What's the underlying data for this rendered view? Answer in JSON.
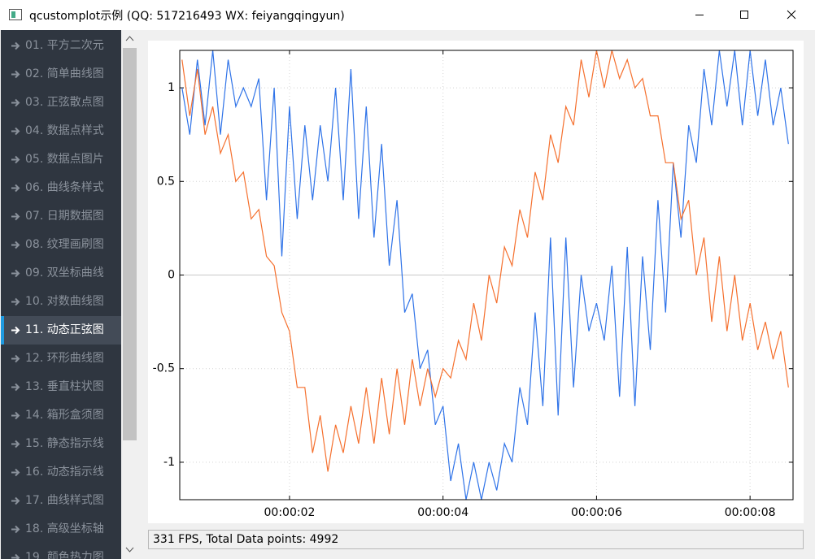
{
  "window": {
    "title": "qcustomplot示例 (QQ: 517216493 WX: feiyangqingyun)"
  },
  "sidebar": {
    "selected": 10,
    "items": [
      "01. 平方二次元",
      "02. 简单曲线图",
      "03. 正弦散点图",
      "04. 数据点样式",
      "05. 数据点图片",
      "06. 曲线条样式",
      "07. 日期数据图",
      "08. 纹理画刷图",
      "09. 双坐标曲线",
      "10. 对数曲线图",
      "11. 动态正弦图",
      "12. 环形曲线图",
      "13. 垂直柱状图",
      "14. 箱形盒须图",
      "15. 静态指示线",
      "16. 动态指示线",
      "17. 曲线样式图",
      "18. 高级坐标轴",
      "19. 颜色热力图"
    ]
  },
  "chart_data": {
    "type": "line",
    "x": [
      0.6,
      0.7,
      0.8,
      0.9,
      1.0,
      1.1,
      1.2,
      1.3,
      1.4,
      1.5,
      1.6,
      1.7,
      1.8,
      1.9,
      2.0,
      2.1,
      2.2,
      2.3,
      2.4,
      2.5,
      2.6,
      2.7,
      2.8,
      2.9,
      3.0,
      3.1,
      3.2,
      3.3,
      3.4,
      3.5,
      3.6,
      3.7,
      3.8,
      3.9,
      4.0,
      4.1,
      4.2,
      4.3,
      4.4,
      4.5,
      4.6,
      4.7,
      4.8,
      4.9,
      5.0,
      5.1,
      5.2,
      5.3,
      5.4,
      5.5,
      5.6,
      5.7,
      5.8,
      5.9,
      6.0,
      6.1,
      6.2,
      6.3,
      6.4,
      6.5,
      6.6,
      6.7,
      6.8,
      6.9,
      7.0,
      7.1,
      7.2,
      7.3,
      7.4,
      7.5,
      7.6,
      7.7,
      7.8,
      7.9,
      8.0,
      8.1,
      8.2,
      8.3,
      8.4,
      8.5
    ],
    "series": [
      {
        "color": "#2f73e8",
        "values": [
          1.0,
          0.75,
          1.15,
          0.8,
          1.2,
          0.75,
          1.15,
          0.9,
          1.0,
          0.9,
          1.05,
          0.4,
          1.0,
          0.1,
          0.9,
          0.3,
          0.8,
          0.4,
          0.8,
          0.5,
          1.0,
          0.4,
          1.1,
          0.3,
          0.9,
          0.2,
          0.7,
          0.05,
          0.4,
          -0.2,
          -0.1,
          -0.5,
          -0.4,
          -0.8,
          -0.7,
          -1.1,
          -0.9,
          -1.2,
          -1.0,
          -1.2,
          -1.0,
          -1.15,
          -0.9,
          -1.0,
          -0.6,
          -0.8,
          -0.2,
          -0.7,
          0.2,
          -0.75,
          0.2,
          -0.6,
          0.0,
          -0.3,
          -0.15,
          -0.35,
          0.05,
          -0.65,
          0.15,
          -0.7,
          0.1,
          -0.4,
          0.4,
          -0.2,
          0.6,
          0.2,
          0.8,
          0.6,
          1.1,
          0.8,
          1.2,
          0.9,
          1.2,
          0.8,
          1.2,
          0.85,
          1.15,
          0.8,
          1.0,
          0.7
        ]
      },
      {
        "color": "#f5702e",
        "values": [
          1.15,
          0.85,
          1.1,
          0.75,
          0.9,
          0.65,
          0.75,
          0.5,
          0.55,
          0.3,
          0.35,
          0.1,
          0.05,
          -0.2,
          -0.3,
          -0.6,
          -0.6,
          -0.95,
          -0.75,
          -1.05,
          -0.8,
          -0.95,
          -0.7,
          -0.9,
          -0.6,
          -0.9,
          -0.55,
          -0.85,
          -0.5,
          -0.8,
          -0.45,
          -0.7,
          -0.5,
          -0.65,
          -0.5,
          -0.55,
          -0.35,
          -0.45,
          -0.15,
          -0.35,
          0.0,
          -0.15,
          0.15,
          0.05,
          0.35,
          0.2,
          0.55,
          0.4,
          0.75,
          0.6,
          0.9,
          0.8,
          1.15,
          0.95,
          1.2,
          1.0,
          1.2,
          1.05,
          1.15,
          1.0,
          1.05,
          0.85,
          0.85,
          0.6,
          0.6,
          0.3,
          0.4,
          0.0,
          0.2,
          -0.25,
          0.1,
          -0.3,
          0.0,
          -0.35,
          -0.15,
          -0.4,
          -0.25,
          -0.45,
          -0.3,
          -0.6
        ]
      }
    ],
    "xlim": [
      0.57,
      8.56
    ],
    "ylim": [
      -1.2,
      1.2
    ],
    "xticks": [
      {
        "value": 2,
        "label": "00:00:02"
      },
      {
        "value": 4,
        "label": "00:00:04"
      },
      {
        "value": 6,
        "label": "00:00:06"
      },
      {
        "value": 8,
        "label": "00:00:08"
      }
    ],
    "yticks": [
      -1,
      -0.5,
      0,
      0.5,
      1
    ],
    "grid": true
  },
  "status": {
    "text": "331 FPS, Total Data points: 4992"
  }
}
